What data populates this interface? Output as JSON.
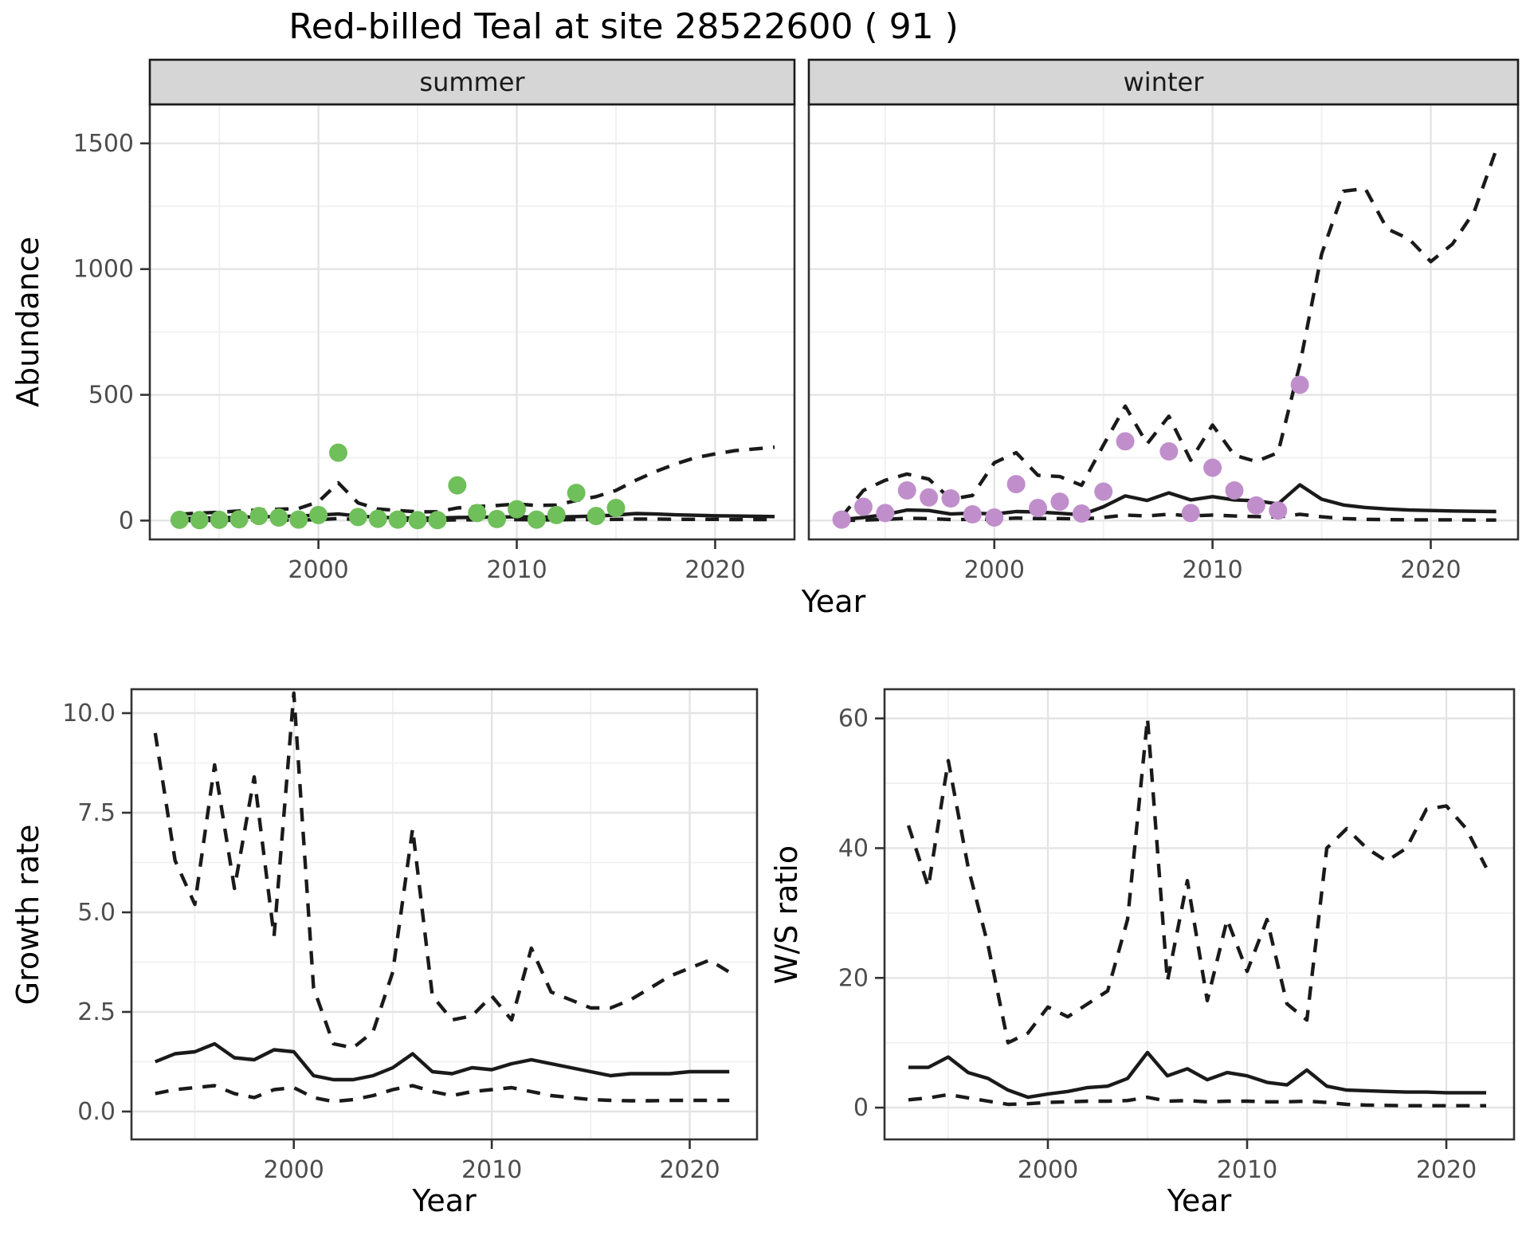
{
  "title": "Red-billed Teal at site 28522600 ( 91 )",
  "colors": {
    "summer_point": "#6fbf5a",
    "winter_point": "#c08fcb",
    "line": "#1a1a1a",
    "strip_bg": "#d6d6d6",
    "strip_border": "#1a1a1a",
    "panel_border": "#333333",
    "grid_major": "#e4e4e4",
    "grid_minor": "#f0f0f0",
    "tick_label": "#4d4d4d",
    "axis_title": "#000000"
  },
  "chart_data": [
    {
      "type": "line",
      "name": "abundance-summer",
      "facet_label": "summer",
      "xlabel": "Year",
      "ylabel": "Abundance",
      "xlim": [
        1991.5,
        2024.0
      ],
      "ylim": [
        -75,
        1655
      ],
      "x_ticks": [
        2000,
        2010,
        2020
      ],
      "x_minor": [
        1995,
        2005,
        2015
      ],
      "y_ticks": [
        0,
        500,
        1000,
        1500
      ],
      "y_tick_labels": [
        "0",
        "500",
        "1000",
        "1500"
      ],
      "y_minor": [
        250,
        750,
        1250
      ],
      "grid": true,
      "legend": "none",
      "series": [
        {
          "name": "upper-ci",
          "style": "dashed",
          "year_start": 1993,
          "values": [
            25,
            30,
            33,
            38,
            42,
            45,
            48,
            75,
            150,
            70,
            46,
            40,
            35,
            35,
            50,
            56,
            60,
            66,
            60,
            62,
            80,
            95,
            120,
            160,
            195,
            225,
            250,
            265,
            278,
            285,
            292
          ]
        },
        {
          "name": "fit",
          "style": "solid",
          "year_start": 1993,
          "values": [
            8,
            10,
            11,
            13,
            15,
            16,
            18,
            22,
            26,
            18,
            13,
            11,
            10,
            10,
            12,
            13,
            14,
            15,
            14,
            14,
            16,
            18,
            22,
            28,
            26,
            23,
            21,
            19,
            18,
            17,
            16
          ]
        },
        {
          "name": "lower-ci",
          "style": "dashed",
          "year_start": 1993,
          "values": [
            0,
            0,
            1,
            1,
            2,
            2,
            2,
            4,
            8,
            4,
            2,
            2,
            1,
            1,
            3,
            3,
            3,
            4,
            3,
            3,
            4,
            4,
            5,
            6,
            6,
            5,
            5,
            5,
            4,
            4,
            4
          ]
        },
        {
          "name": "observed",
          "style": "points",
          "color_key": "summer_point",
          "years": [
            1993,
            1994,
            1995,
            1996,
            1997,
            1998,
            1999,
            2000,
            2001,
            2002,
            2003,
            2004,
            2005,
            2006,
            2007,
            2008,
            2009,
            2010,
            2011,
            2012,
            2013,
            2014,
            2015
          ],
          "values": [
            3,
            2,
            3,
            5,
            18,
            12,
            4,
            22,
            270,
            14,
            7,
            4,
            2,
            2,
            140,
            30,
            6,
            45,
            4,
            22,
            110,
            18,
            50
          ]
        }
      ]
    },
    {
      "type": "line",
      "name": "abundance-winter",
      "facet_label": "winter",
      "xlabel": "Year",
      "ylabel": "Abundance",
      "xlim": [
        1991.5,
        2024.0
      ],
      "ylim": [
        -75,
        1655
      ],
      "x_ticks": [
        2000,
        2010,
        2020
      ],
      "x_minor": [
        1995,
        2005,
        2015
      ],
      "y_ticks": [
        0,
        500,
        1000,
        1500
      ],
      "y_tick_labels": [
        "0",
        "500",
        "1000",
        "1500"
      ],
      "y_minor": [
        250,
        750,
        1250
      ],
      "grid": true,
      "legend": "none",
      "series": [
        {
          "name": "upper-ci",
          "style": "dashed",
          "year_start": 1993,
          "values": [
            15,
            120,
            160,
            185,
            165,
            85,
            100,
            230,
            270,
            180,
            175,
            140,
            300,
            455,
            305,
            415,
            240,
            380,
            260,
            235,
            270,
            620,
            1060,
            1310,
            1320,
            1160,
            1120,
            1030,
            1100,
            1230,
            1475
          ]
        },
        {
          "name": "fit",
          "style": "solid",
          "year_start": 1993,
          "values": [
            4,
            12,
            24,
            42,
            40,
            26,
            30,
            26,
            36,
            34,
            29,
            23,
            55,
            98,
            80,
            110,
            82,
            95,
            82,
            79,
            66,
            142,
            85,
            62,
            52,
            46,
            42,
            40,
            38,
            37,
            36
          ]
        },
        {
          "name": "lower-ci",
          "style": "dashed",
          "year_start": 1993,
          "values": [
            0,
            2,
            5,
            9,
            8,
            4,
            5,
            5,
            10,
            8,
            8,
            6,
            12,
            22,
            18,
            25,
            18,
            22,
            18,
            16,
            14,
            25,
            15,
            8,
            5,
            4,
            3,
            3,
            3,
            2,
            2
          ]
        },
        {
          "name": "observed",
          "style": "points",
          "color_key": "winter_point",
          "years": [
            1993,
            1994,
            1995,
            1996,
            1997,
            1998,
            1999,
            2000,
            2001,
            2002,
            2003,
            2004,
            2005,
            2006,
            2008,
            2009,
            2010,
            2011,
            2012,
            2013,
            2014
          ],
          "values": [
            4,
            55,
            30,
            120,
            92,
            88,
            25,
            12,
            145,
            50,
            75,
            28,
            115,
            315,
            275,
            30,
            210,
            120,
            60,
            40,
            540
          ]
        }
      ]
    },
    {
      "type": "line",
      "name": "growth-rate",
      "facet_label": "",
      "xlabel": "Year",
      "ylabel": "Growth rate",
      "xlim": [
        1991.8,
        2023.4
      ],
      "ylim": [
        -0.7,
        10.6
      ],
      "x_ticks": [
        2000,
        2010,
        2020
      ],
      "x_minor": [
        1995,
        2005,
        2015
      ],
      "y_ticks": [
        0.0,
        2.5,
        5.0,
        7.5,
        10.0
      ],
      "y_tick_labels": [
        "0.0",
        "2.5",
        "5.0",
        "7.5",
        "10.0"
      ],
      "y_minor": [
        1.25,
        3.75,
        6.25,
        8.75
      ],
      "grid": true,
      "legend": "none",
      "series": [
        {
          "name": "upper-ci",
          "style": "dashed",
          "year_start": 1993,
          "values": [
            9.5,
            6.3,
            5.2,
            8.7,
            5.6,
            8.4,
            4.4,
            10.5,
            3.1,
            1.7,
            1.6,
            2.0,
            3.5,
            7.1,
            2.9,
            2.3,
            2.4,
            2.9,
            2.3,
            4.1,
            3.0,
            2.8,
            2.6,
            2.6,
            2.8,
            3.1,
            3.4,
            3.6,
            3.8,
            3.5
          ]
        },
        {
          "name": "fit",
          "style": "solid",
          "year_start": 1993,
          "values": [
            1.25,
            1.45,
            1.5,
            1.7,
            1.35,
            1.3,
            1.55,
            1.5,
            0.9,
            0.8,
            0.8,
            0.9,
            1.1,
            1.45,
            1.0,
            0.95,
            1.1,
            1.05,
            1.2,
            1.3,
            1.2,
            1.1,
            1.0,
            0.9,
            0.95,
            0.95,
            0.95,
            1.0,
            1.0,
            1.0
          ]
        },
        {
          "name": "lower-ci",
          "style": "dashed",
          "year_start": 1993,
          "values": [
            0.45,
            0.55,
            0.6,
            0.65,
            0.45,
            0.35,
            0.55,
            0.6,
            0.35,
            0.25,
            0.3,
            0.4,
            0.55,
            0.65,
            0.5,
            0.4,
            0.5,
            0.55,
            0.6,
            0.5,
            0.4,
            0.35,
            0.3,
            0.28,
            0.27,
            0.27,
            0.28,
            0.28,
            0.28,
            0.28
          ]
        }
      ]
    },
    {
      "type": "line",
      "name": "ws-ratio",
      "facet_label": "",
      "xlabel": "Year",
      "ylabel": "W/S ratio",
      "xlim": [
        1991.8,
        2023.4
      ],
      "ylim": [
        -4.9,
        64.5
      ],
      "x_ticks": [
        2000,
        2010,
        2020
      ],
      "x_minor": [
        1995,
        2005,
        2015
      ],
      "y_ticks": [
        0,
        20,
        40,
        60
      ],
      "y_tick_labels": [
        "0",
        "20",
        "40",
        "60"
      ],
      "y_minor": [
        10,
        30,
        50
      ],
      "grid": true,
      "legend": "none",
      "series": [
        {
          "name": "upper-ci",
          "style": "dashed",
          "year_start": 1993,
          "values": [
            43.5,
            34,
            53.5,
            37,
            25,
            10,
            11.5,
            15.5,
            14,
            16,
            18,
            29,
            60,
            19.5,
            35,
            16.5,
            29,
            21,
            29,
            16,
            13.5,
            40,
            43,
            40,
            38,
            40,
            46,
            46.5,
            43,
            37
          ]
        },
        {
          "name": "fit",
          "style": "solid",
          "year_start": 1993,
          "values": [
            6.2,
            6.2,
            7.8,
            5.4,
            4.5,
            2.7,
            1.6,
            2.1,
            2.5,
            3.1,
            3.3,
            4.5,
            8.5,
            4.9,
            6.0,
            4.3,
            5.4,
            4.9,
            3.9,
            3.5,
            5.8,
            3.3,
            2.7,
            2.6,
            2.5,
            2.4,
            2.4,
            2.3,
            2.3,
            2.3
          ]
        },
        {
          "name": "lower-ci",
          "style": "dashed",
          "year_start": 1993,
          "values": [
            1.2,
            1.5,
            2.0,
            1.5,
            1.0,
            0.5,
            0.6,
            0.8,
            0.9,
            1.0,
            1.0,
            1.1,
            1.6,
            1.0,
            1.1,
            0.9,
            1.0,
            1.0,
            0.9,
            0.9,
            1.0,
            0.8,
            0.5,
            0.4,
            0.35,
            0.3,
            0.3,
            0.3,
            0.3,
            0.3
          ]
        }
      ]
    }
  ]
}
